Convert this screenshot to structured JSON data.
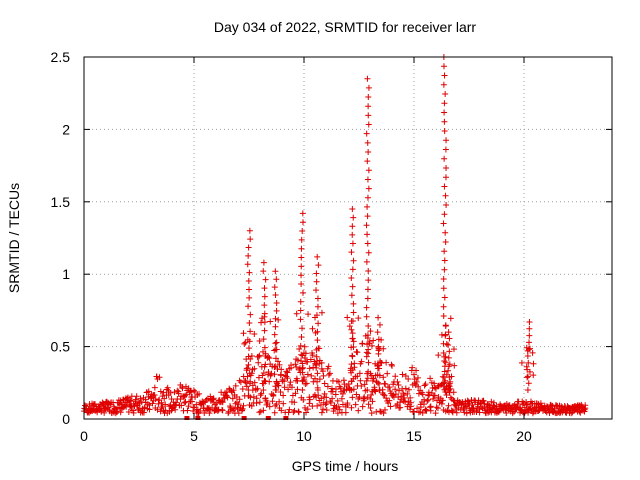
{
  "chart_data": {
    "type": "scatter",
    "title": "Day 034 of 2022, SRMTID for receiver larr",
    "xlabel": "GPS time / hours",
    "ylabel": "SRMTID / TECUs",
    "xlim": [
      0,
      24
    ],
    "ylim": [
      0,
      2.5
    ],
    "x_ticks": [
      0,
      5,
      10,
      15,
      20
    ],
    "x_tick_labels": [
      "0",
      "5",
      "10",
      "15",
      "20"
    ],
    "y_ticks": [
      0,
      0.5,
      1,
      1.5,
      2,
      2.5
    ],
    "y_tick_labels": [
      "0",
      "0.5",
      "1",
      "1.5",
      "2",
      "2.5"
    ],
    "grid": true,
    "marker": "+",
    "color": "#e00000",
    "series": [
      {
        "name": "SRMTID",
        "baseline_envelope": [
          [
            0,
            0.08
          ],
          [
            1,
            0.1
          ],
          [
            2,
            0.13
          ],
          [
            3,
            0.18
          ],
          [
            3.3,
            0.3
          ],
          [
            4,
            0.15
          ],
          [
            4.5,
            0.28
          ],
          [
            5,
            0.18
          ],
          [
            5.5,
            0.12
          ],
          [
            6,
            0.16
          ],
          [
            6.7,
            0.2
          ],
          [
            7.2,
            0.28
          ],
          [
            7.5,
            0.38
          ],
          [
            8,
            0.45
          ],
          [
            8.5,
            0.4
          ],
          [
            9,
            0.3
          ],
          [
            9.5,
            0.38
          ],
          [
            10,
            0.45
          ],
          [
            10.5,
            0.5
          ],
          [
            11,
            0.4
          ],
          [
            11.5,
            0.25
          ],
          [
            12,
            0.28
          ],
          [
            12.5,
            0.55
          ],
          [
            13,
            0.6
          ],
          [
            13.5,
            0.45
          ],
          [
            14,
            0.35
          ],
          [
            14.5,
            0.3
          ],
          [
            15,
            0.35
          ],
          [
            15.5,
            0.28
          ],
          [
            16,
            0.25
          ],
          [
            16.5,
            0.3
          ],
          [
            17,
            0.1
          ],
          [
            18,
            0.12
          ],
          [
            19,
            0.08
          ],
          [
            20,
            0.12
          ],
          [
            21,
            0.08
          ],
          [
            22,
            0.07
          ],
          [
            22.8,
            0.08
          ]
        ],
        "spikes": [
          {
            "x": 7.5,
            "ymax": 1.3
          },
          {
            "x": 8.2,
            "ymax": 1.08
          },
          {
            "x": 8.7,
            "ymax": 1.02
          },
          {
            "x": 9.9,
            "ymax": 1.42
          },
          {
            "x": 10.6,
            "ymax": 1.12
          },
          {
            "x": 12.2,
            "ymax": 1.45
          },
          {
            "x": 12.9,
            "ymax": 2.35
          },
          {
            "x": 13.4,
            "ymax": 0.7
          },
          {
            "x": 16.4,
            "ymax": 2.5
          },
          {
            "x": 16.6,
            "ymax": 0.6
          },
          {
            "x": 20.2,
            "ymax": 0.67
          }
        ],
        "zero_points": [
          4.7,
          5.2,
          7.3,
          8.4,
          9.2
        ]
      }
    ]
  }
}
